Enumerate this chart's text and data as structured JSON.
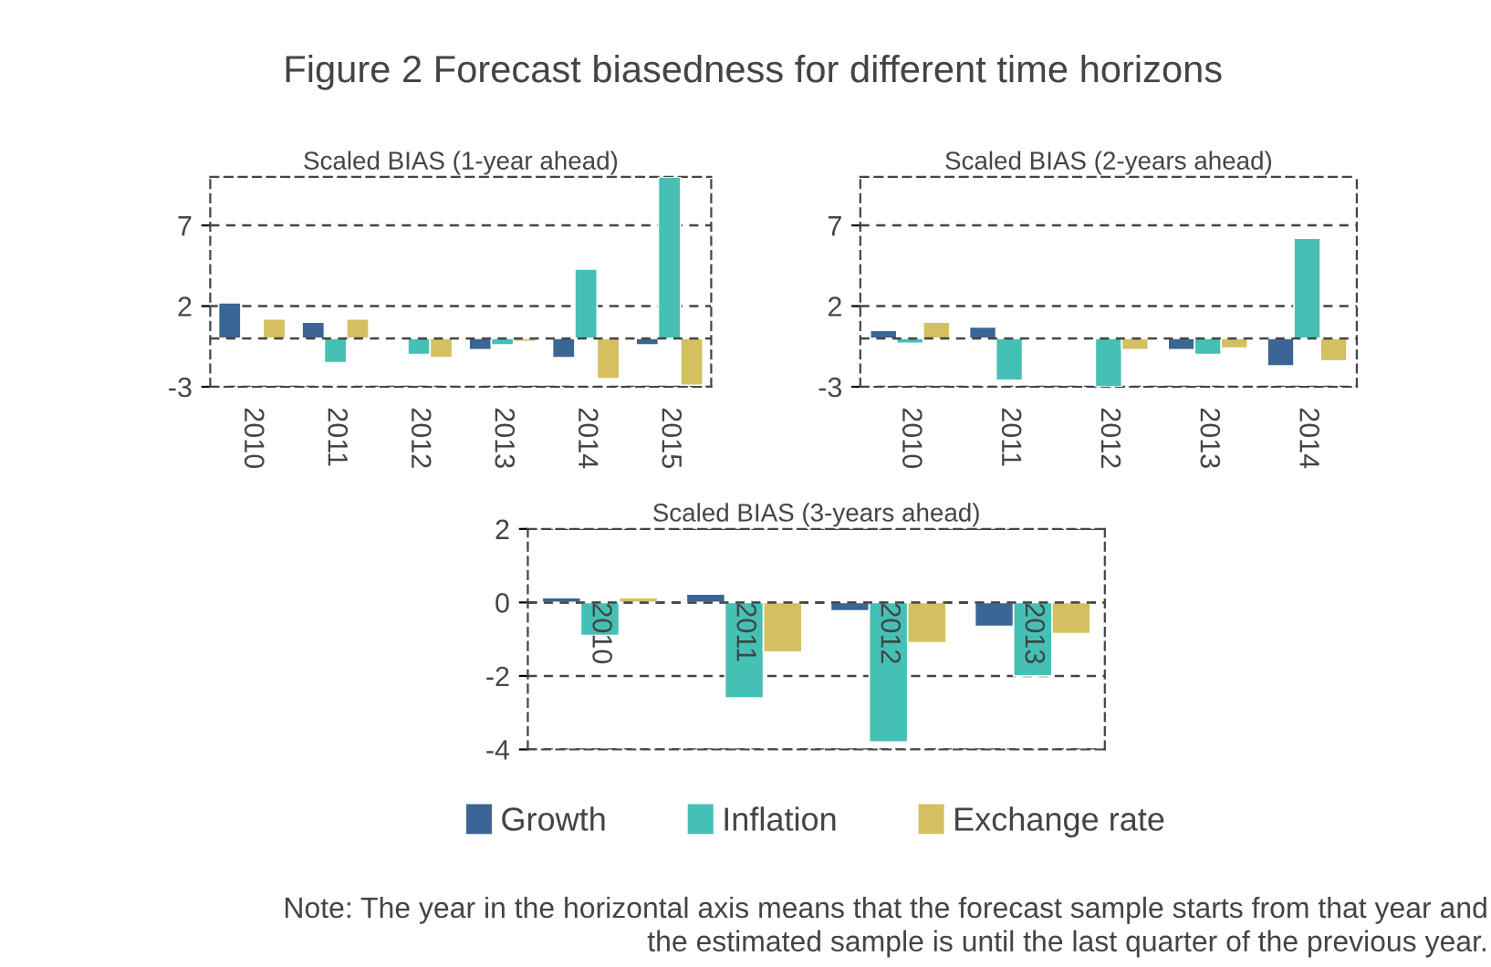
{
  "chart_data": [
    {
      "type": "bar",
      "title": "Scaled BIAS (1-year ahead)",
      "categories": [
        "2010",
        "2011",
        "2012",
        "2013",
        "2014",
        "2015"
      ],
      "ylim": [
        -3,
        10
      ],
      "yticks": [
        -3,
        2,
        7
      ],
      "grid": "y",
      "legend": false,
      "series": [
        {
          "color": "#3a6595",
          "values": [
            2.2,
            1.0,
            null,
            -0.7,
            -1.2,
            -0.4
          ]
        },
        {
          "color": "#45c0b5",
          "values": [
            null,
            -1.5,
            -1.0,
            -0.4,
            4.3,
            10
          ]
        },
        {
          "color": "#d4c060",
          "values": [
            1.2,
            1.2,
            -1.2,
            -0.2,
            -2.5,
            -2.9
          ]
        }
      ]
    },
    {
      "type": "bar",
      "title": "Scaled BIAS (2-years ahead)",
      "categories": [
        "2010",
        "2011",
        "2012",
        "2013",
        "2014"
      ],
      "ylim": [
        -3,
        10
      ],
      "yticks": [
        -3,
        2,
        7
      ],
      "grid": "y",
      "legend": false,
      "series": [
        {
          "color": "#3a6595",
          "values": [
            0.5,
            0.7,
            -0.1,
            -0.7,
            -1.7
          ]
        },
        {
          "color": "#45c0b5",
          "values": [
            -0.3,
            -2.6,
            -3.0,
            -1.0,
            6.2
          ]
        },
        {
          "color": "#d4c060",
          "values": [
            1.0,
            null,
            -0.7,
            -0.6,
            -1.4
          ]
        }
      ]
    },
    {
      "type": "bar",
      "title": "Scaled BIAS (3-years ahead)",
      "categories": [
        "2010",
        "2011",
        "2012",
        "2013"
      ],
      "ylim": [
        -4,
        2
      ],
      "yticks": [
        -4,
        -2,
        0,
        2
      ],
      "grid": "y",
      "legend": "bottom",
      "series": [
        {
          "name": "Growth",
          "color": "#3a6595",
          "values": [
            0.13,
            0.23,
            -0.23,
            -0.65
          ]
        },
        {
          "name": "Inflation",
          "color": "#45c0b5",
          "values": [
            -0.9,
            -2.6,
            -3.8,
            -2.0
          ]
        },
        {
          "name": "Exchange rate",
          "color": "#d4c060",
          "values": [
            0.13,
            -1.35,
            -1.1,
            -0.85
          ]
        }
      ],
      "annotations": [
        "Figure 2 Forecast biasedness for different time horizons",
        "Note: The year in the horizontal axis means that the forecast sample starts from that year and\nthe estimated sample is until the last quarter of the previous year."
      ]
    }
  ]
}
